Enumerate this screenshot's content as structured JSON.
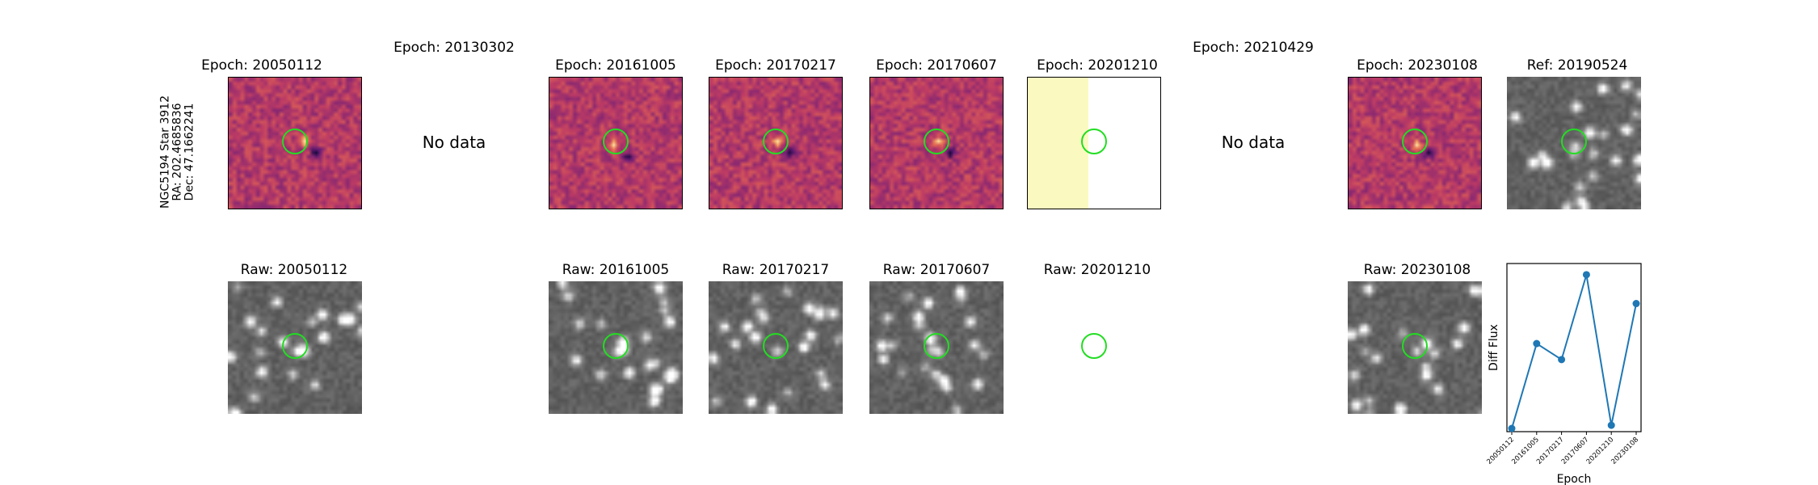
{
  "target": {
    "name": "NGC5194 Star 3912",
    "ra": "RA: 202.4685836",
    "dec": "Dec: 47.1662241"
  },
  "diff_row": [
    {
      "title": "Epoch: 20050112",
      "kind": "image"
    },
    {
      "title": "Epoch: 20130302",
      "kind": "nodata",
      "message": "No data"
    },
    {
      "title": "Epoch: 20161005",
      "kind": "image"
    },
    {
      "title": "Epoch: 20170217",
      "kind": "image"
    },
    {
      "title": "Epoch: 20170607",
      "kind": "image"
    },
    {
      "title": "Epoch: 20201210",
      "kind": "partial"
    },
    {
      "title": "Epoch: 20210429",
      "kind": "nodata",
      "message": "No data"
    },
    {
      "title": "Epoch: 20230108",
      "kind": "image"
    },
    {
      "title": "Ref: 20190524",
      "kind": "reference"
    }
  ],
  "raw_row": [
    {
      "title": "Raw: 20050112",
      "kind": "image"
    },
    {
      "title": "Raw: 20161005",
      "kind": "image"
    },
    {
      "title": "Raw: 20170217",
      "kind": "image"
    },
    {
      "title": "Raw: 20170607",
      "kind": "image"
    },
    {
      "title": "Raw: 20201210",
      "kind": "blank"
    },
    {
      "title": "Raw: 20230108",
      "kind": "image"
    }
  ],
  "colors": {
    "ring": "#22dd22",
    "series": "#1f77b4",
    "partial_fill": "#fafac0"
  },
  "chart_data": {
    "type": "line",
    "xlabel": "Epoch",
    "ylabel": "Diff Flux",
    "categories": [
      "20050112",
      "20161005",
      "20170217",
      "20170607",
      "20201210",
      "20230108"
    ],
    "series": [
      {
        "values": [
          0.02,
          0.55,
          0.45,
          0.98,
          0.04,
          0.8
        ]
      }
    ],
    "ylim": [
      0,
      1.05
    ],
    "grid": false
  }
}
